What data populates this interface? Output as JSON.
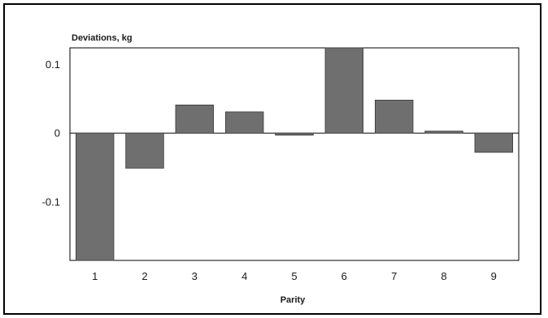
{
  "chart_data": {
    "type": "bar",
    "ylabel": "Deviations, kg",
    "xlabel": "Parity",
    "categories": [
      "1",
      "2",
      "3",
      "4",
      "5",
      "6",
      "7",
      "8",
      "9"
    ],
    "values": [
      -0.185,
      -0.051,
      0.041,
      0.031,
      -0.003,
      0.124,
      0.048,
      0.003,
      -0.028
    ],
    "ylim": [
      -0.185,
      0.124
    ],
    "yticks": [
      0.1,
      0,
      -0.1
    ],
    "ytick_labels": [
      "0.1",
      "0",
      "-0.1"
    ],
    "grid": false,
    "colors": {
      "bar": "#6f6f6f",
      "bar_edge": "#3a3a3a",
      "axis": "#000000"
    }
  }
}
